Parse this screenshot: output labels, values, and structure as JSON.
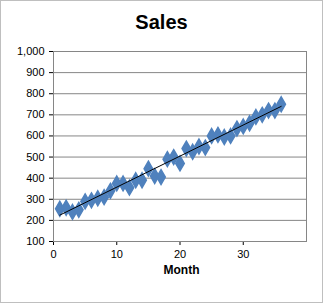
{
  "chart_data": {
    "type": "scatter",
    "title": "Sales",
    "x_label": "Month",
    "x": [
      1,
      2,
      3,
      4,
      5,
      6,
      7,
      8,
      9,
      10,
      11,
      12,
      13,
      14,
      15,
      16,
      17,
      18,
      19,
      20,
      21,
      22,
      23,
      24,
      25,
      26,
      27,
      28,
      29,
      30,
      31,
      32,
      33,
      34,
      35,
      36
    ],
    "values": [
      255,
      260,
      240,
      250,
      290,
      295,
      305,
      310,
      340,
      375,
      375,
      355,
      390,
      390,
      445,
      410,
      405,
      490,
      500,
      470,
      540,
      525,
      550,
      545,
      600,
      605,
      595,
      600,
      635,
      645,
      660,
      690,
      700,
      720,
      720,
      750
    ],
    "color": "#4f81bd",
    "marker": "diamond",
    "trendline": {
      "x": [
        1,
        36
      ],
      "values": [
        225,
        740
      ],
      "color": "#000000",
      "line_style": "solid"
    },
    "xlim": [
      0,
      40
    ],
    "xticks": [
      0,
      10,
      20,
      30
    ],
    "ylim": [
      100,
      1000
    ],
    "yticks": [
      100,
      200,
      300,
      400,
      500,
      600,
      700,
      800,
      900,
      1000
    ],
    "grid": true
  }
}
